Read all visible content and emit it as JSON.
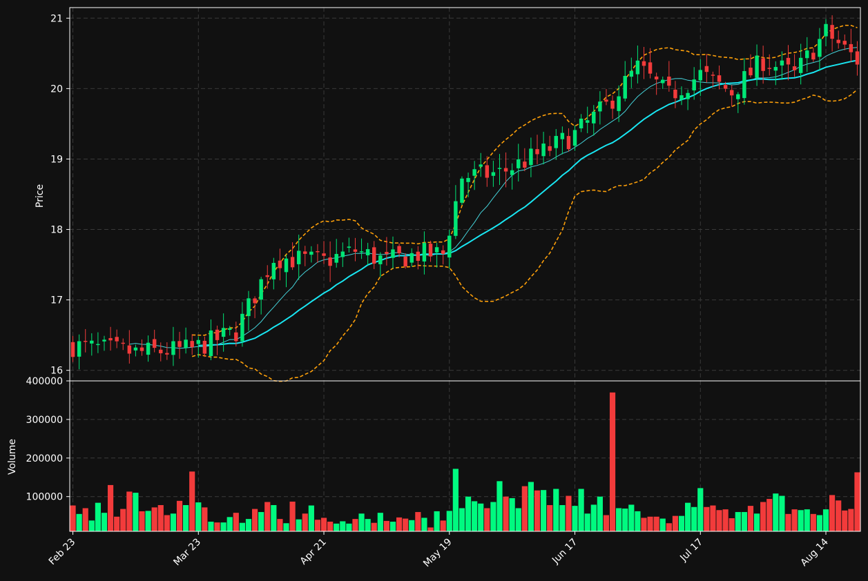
{
  "chart_data": [
    {
      "type": "candlestick",
      "panel": "price",
      "ylabel": "Price",
      "ylim": [
        15.85,
        21.15
      ],
      "yticks": [
        16,
        17,
        18,
        19,
        20,
        21
      ],
      "xlim": [
        -0.5,
        125.5
      ],
      "xticks": [
        {
          "index": 0,
          "label": "Feb 23"
        },
        {
          "index": 20,
          "label": "Mar 23"
        },
        {
          "index": 40,
          "label": "Apr 21"
        },
        {
          "index": 60,
          "label": "May 19"
        },
        {
          "index": 80,
          "label": "Jun 17"
        },
        {
          "index": 100,
          "label": "Jul 17"
        },
        {
          "index": 120,
          "label": "Aug 14"
        }
      ],
      "grid": true,
      "candle_colors": {
        "up": "#00e676",
        "down": "#f23b3b"
      },
      "line_colors": {
        "ma_fast": "#45d3da",
        "ma_slow": "#19e6f2",
        "bands": "#ffa10a"
      },
      "close_trend": [
        [
          0,
          16.35
        ],
        [
          10,
          16.25
        ],
        [
          19,
          16.3
        ],
        [
          26,
          16.55
        ],
        [
          32,
          17.6
        ],
        [
          40,
          17.55
        ],
        [
          45,
          17.7
        ],
        [
          50,
          17.55
        ],
        [
          55,
          17.65
        ],
        [
          59,
          17.65
        ],
        [
          62,
          18.75
        ],
        [
          68,
          18.8
        ],
        [
          75,
          19.1
        ],
        [
          80,
          19.35
        ],
        [
          85,
          19.75
        ],
        [
          90,
          20.3
        ],
        [
          95,
          19.9
        ],
        [
          100,
          20.2
        ],
        [
          105,
          19.95
        ],
        [
          110,
          20.4
        ],
        [
          115,
          20.2
        ],
        [
          120,
          20.8
        ],
        [
          125,
          20.4
        ]
      ],
      "ma_slow_start": 20,
      "ma_fast_start": 9,
      "bands_start": 19
    },
    {
      "type": "bar",
      "panel": "volume",
      "ylabel": "Volume",
      "ylim": [
        10000,
        400000
      ],
      "yticks": [
        100000,
        200000,
        300000,
        400000
      ],
      "bar_colors": {
        "up": "#00fa80",
        "down": "#f23b3b"
      },
      "values": [
        77000,
        55000,
        70000,
        38000,
        84000,
        58000,
        130000,
        48000,
        68000,
        113000,
        110000,
        62000,
        63000,
        72000,
        78000,
        52000,
        56000,
        89000,
        78000,
        165000,
        85000,
        72000,
        35000,
        33000,
        33000,
        47000,
        58000,
        32000,
        42000,
        68000,
        60000,
        86000,
        78000,
        42000,
        31000,
        87000,
        41000,
        56000,
        77000,
        40000,
        45000,
        35000,
        30000,
        36000,
        30000,
        42000,
        56000,
        42000,
        32000,
        58000,
        37000,
        35000,
        46000,
        43000,
        39000,
        60000,
        45000,
        20000,
        62000,
        38000,
        63000,
        172000,
        70000,
        100000,
        88000,
        82000,
        70000,
        86000,
        140000,
        100000,
        96000,
        70000,
        127000,
        138000,
        116000,
        117000,
        78000,
        120000,
        78000,
        102000,
        76000,
        120000,
        56000,
        79000,
        100000,
        52000,
        370000,
        70000,
        69000,
        79000,
        62000,
        45000,
        48000,
        48000,
        43000,
        31000,
        50000,
        50000,
        84000,
        73000,
        122000,
        73000,
        77000,
        65000,
        67000,
        44000,
        60000,
        60000,
        76000,
        56000,
        86000,
        94000,
        108000,
        102000,
        55000,
        67000,
        65000,
        67000,
        55000,
        52000,
        67000,
        104000,
        90000,
        64000,
        68000,
        163000
      ]
    }
  ],
  "axes": {
    "price_ylabel": "Price",
    "volume_ylabel": "Volume"
  }
}
